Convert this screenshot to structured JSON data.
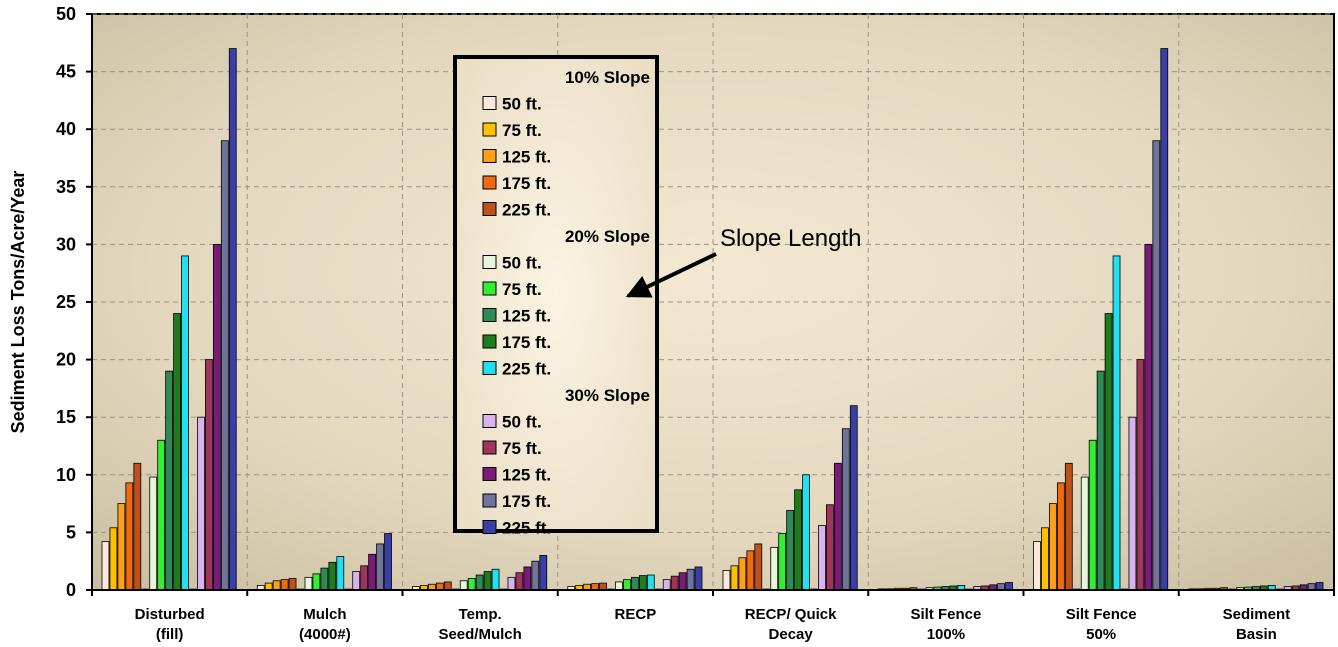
{
  "chart_data": {
    "type": "bar",
    "title": "",
    "xlabel": "",
    "ylabel": "Sediment Loss Tons/Acre/Year",
    "ylim": [
      0,
      50
    ],
    "yticks": [
      0,
      5,
      10,
      15,
      20,
      25,
      30,
      35,
      40,
      45,
      50
    ],
    "grid": true,
    "legend_position": "top-center",
    "categories": [
      [
        "Disturbed",
        "(fill)"
      ],
      [
        "Mulch",
        "(4000#)"
      ],
      [
        "Temp.",
        "Seed/Mulch"
      ],
      [
        "RECP"
      ],
      [
        "RECP/ Quick",
        "Decay"
      ],
      [
        "Silt Fence",
        "100%"
      ],
      [
        "Silt Fence",
        "50%"
      ],
      [
        "Sediment",
        "Basin"
      ]
    ],
    "groups": [
      {
        "name": "10% Slope",
        "series": [
          {
            "name": "50 ft.",
            "color": "#FDE9D9",
            "values": [
              4.2,
              0.4,
              0.3,
              0.3,
              1.7,
              0.1,
              4.2,
              0.1
            ]
          },
          {
            "name": "75 ft.",
            "color": "#FFC000",
            "values": [
              5.4,
              0.6,
              0.4,
              0.4,
              2.1,
              0.1,
              5.4,
              0.1
            ]
          },
          {
            "name": "125 ft.",
            "color": "#FF9F1A",
            "values": [
              7.5,
              0.8,
              0.5,
              0.5,
              2.8,
              0.15,
              7.5,
              0.15
            ]
          },
          {
            "name": "175 ft.",
            "color": "#F26A10",
            "values": [
              9.3,
              0.9,
              0.6,
              0.55,
              3.4,
              0.15,
              9.3,
              0.15
            ]
          },
          {
            "name": "225 ft.",
            "color": "#C0501A",
            "values": [
              11,
              1.0,
              0.7,
              0.6,
              4.0,
              0.2,
              11,
              0.2
            ]
          }
        ]
      },
      {
        "name": "20% Slope",
        "series": [
          {
            "name": "50 ft.",
            "color": "#E6F7D9",
            "values": [
              9.8,
              1.1,
              0.8,
              0.7,
              3.7,
              0.2,
              9.8,
              0.2
            ]
          },
          {
            "name": "75 ft.",
            "color": "#33EE33",
            "values": [
              13,
              1.4,
              1.0,
              0.9,
              4.9,
              0.25,
              13,
              0.25
            ]
          },
          {
            "name": "125 ft.",
            "color": "#2E8B57",
            "values": [
              19,
              1.9,
              1.3,
              1.1,
              6.9,
              0.3,
              19,
              0.3
            ]
          },
          {
            "name": "175 ft.",
            "color": "#1E7B1E",
            "values": [
              24,
              2.4,
              1.6,
              1.25,
              8.7,
              0.35,
              24,
              0.35
            ]
          },
          {
            "name": "225 ft.",
            "color": "#22E0F0",
            "values": [
              29,
              2.9,
              1.8,
              1.3,
              10,
              0.4,
              29,
              0.4
            ]
          }
        ]
      },
      {
        "name": "30% Slope",
        "series": [
          {
            "name": "50 ft.",
            "color": "#D9B3F0",
            "values": [
              15,
              1.6,
              1.1,
              0.9,
              5.6,
              0.3,
              15,
              0.3
            ]
          },
          {
            "name": "75 ft.",
            "color": "#A0345A",
            "values": [
              20,
              2.1,
              1.5,
              1.2,
              7.4,
              0.35,
              20,
              0.35
            ]
          },
          {
            "name": "125 ft.",
            "color": "#7A1A7A",
            "values": [
              30,
              3.1,
              2.0,
              1.5,
              11,
              0.45,
              30,
              0.45
            ]
          },
          {
            "name": "175 ft.",
            "color": "#70739A",
            "values": [
              39,
              4.0,
              2.5,
              1.8,
              14,
              0.55,
              39,
              0.55
            ]
          },
          {
            "name": "225 ft.",
            "color": "#3A3FA8",
            "values": [
              47,
              4.9,
              3.0,
              2.0,
              16,
              0.65,
              47,
              0.65
            ]
          }
        ]
      }
    ],
    "annotation": "Slope Length"
  }
}
